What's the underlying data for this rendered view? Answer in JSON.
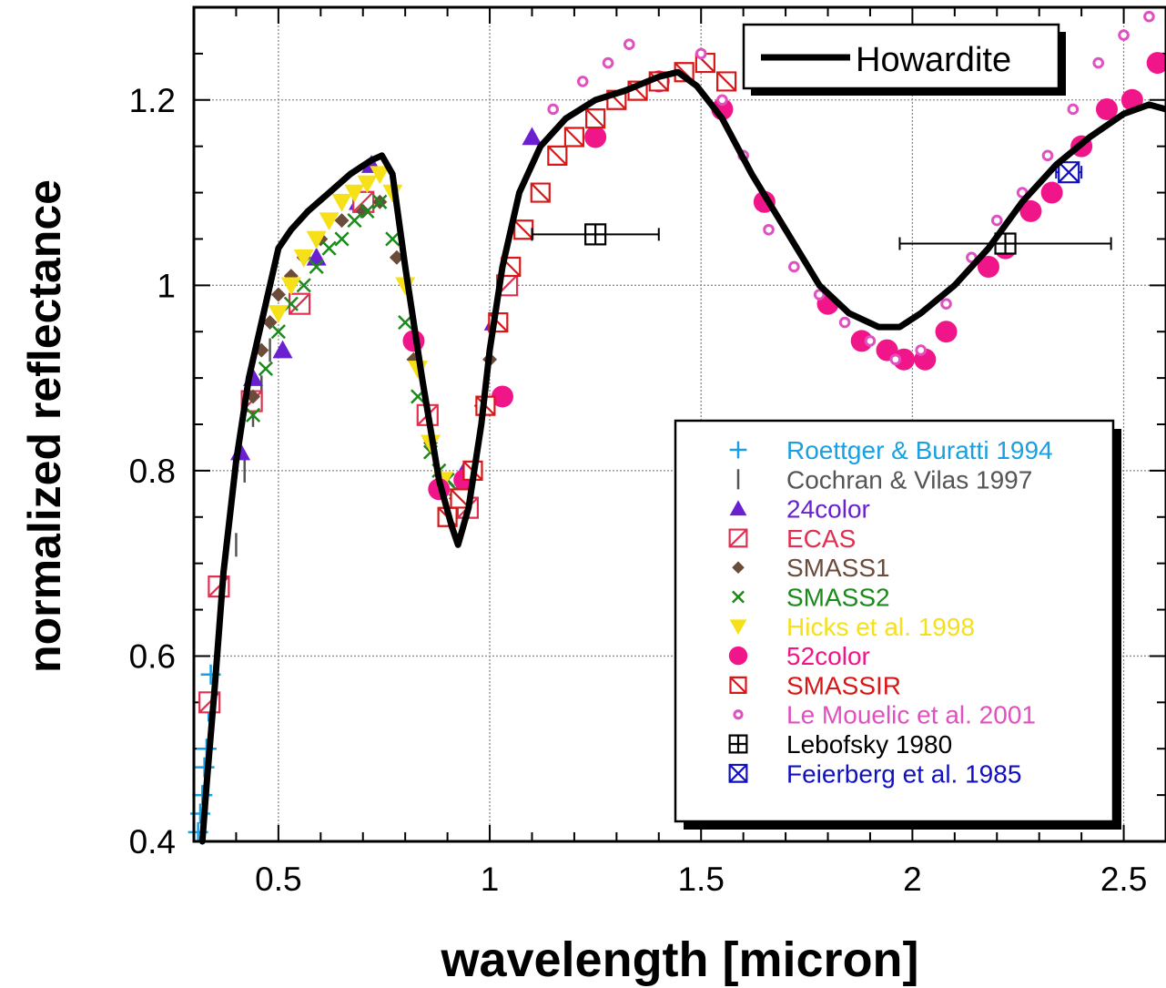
{
  "chart_data": {
    "type": "scatter",
    "title": "",
    "xlabel": "wavelength [micron]",
    "ylabel": "normalized reflectance",
    "xlim": [
      0.3,
      2.6
    ],
    "ylim": [
      0.4,
      1.3
    ],
    "x_ticks": [
      {
        "v": 0.5,
        "label": "0.5"
      },
      {
        "v": 1.0,
        "label": "1"
      },
      {
        "v": 1.5,
        "label": "1.5"
      },
      {
        "v": 2.0,
        "label": "2"
      },
      {
        "v": 2.5,
        "label": "2.5"
      }
    ],
    "y_ticks": [
      {
        "v": 0.4,
        "label": "0.4"
      },
      {
        "v": 0.6,
        "label": "0.6"
      },
      {
        "v": 0.8,
        "label": "0.8"
      },
      {
        "v": 1.0,
        "label": "1"
      },
      {
        "v": 1.2,
        "label": "1.2"
      }
    ],
    "grid": true,
    "line_legend": {
      "position": "top-right",
      "label": "Howardite",
      "color": "#000000"
    },
    "legend_position": "center-right",
    "line_series": {
      "name": "Howardite",
      "color": "#000000",
      "x": [
        0.32,
        0.33,
        0.35,
        0.37,
        0.4,
        0.43,
        0.46,
        0.5,
        0.53,
        0.57,
        0.62,
        0.67,
        0.72,
        0.745,
        0.77,
        0.8,
        0.84,
        0.88,
        0.91,
        0.925,
        0.95,
        0.98,
        1.0,
        1.03,
        1.07,
        1.12,
        1.18,
        1.25,
        1.32,
        1.4,
        1.445,
        1.49,
        1.55,
        1.62,
        1.7,
        1.78,
        1.85,
        1.92,
        1.97,
        2.02,
        2.1,
        2.18,
        2.26,
        2.34,
        2.42,
        2.5,
        2.56,
        2.6
      ],
      "y": [
        0.4,
        0.46,
        0.57,
        0.69,
        0.81,
        0.9,
        0.96,
        1.04,
        1.06,
        1.08,
        1.1,
        1.12,
        1.135,
        1.14,
        1.12,
        1.02,
        0.9,
        0.79,
        0.74,
        0.72,
        0.76,
        0.85,
        0.93,
        1.02,
        1.1,
        1.15,
        1.18,
        1.2,
        1.21,
        1.225,
        1.23,
        1.215,
        1.18,
        1.12,
        1.06,
        1.0,
        0.97,
        0.955,
        0.955,
        0.97,
        1.0,
        1.04,
        1.09,
        1.13,
        1.16,
        1.185,
        1.195,
        1.19
      ]
    },
    "series": [
      {
        "name": "Roettger & Buratti 1994",
        "marker": "plus",
        "color": "#1aa0e0",
        "x": [
          0.31,
          0.315,
          0.32,
          0.325,
          0.33,
          0.335,
          0.34
        ],
        "y": [
          0.41,
          0.43,
          0.45,
          0.48,
          0.5,
          0.54,
          0.58
        ]
      },
      {
        "name": "Cochran & Vilas 1997",
        "marker": "bar",
        "color": "#555555",
        "x": [
          0.4,
          0.42,
          0.44,
          0.46,
          0.48
        ],
        "y": [
          0.72,
          0.8,
          0.86,
          0.89,
          0.93
        ]
      },
      {
        "name": "24color",
        "marker": "triangle-up",
        "color": "#6a1fd0",
        "x": [
          0.41,
          0.44,
          0.51,
          0.59,
          0.69,
          0.72,
          0.94,
          1.01,
          1.1
        ],
        "y": [
          0.82,
          0.9,
          0.93,
          1.03,
          1.09,
          1.13,
          0.8,
          0.96,
          1.16
        ]
      },
      {
        "name": "ECAS",
        "marker": "square-slash",
        "color": "#e03050",
        "x": [
          0.337,
          0.359,
          0.437,
          0.55,
          0.701,
          0.853,
          0.948,
          1.041
        ],
        "y": [
          0.55,
          0.675,
          0.875,
          0.98,
          1.09,
          0.86,
          0.76,
          1.0
        ]
      },
      {
        "name": "SMASS1",
        "marker": "diamond",
        "color": "#6b4c3b",
        "x": [
          0.44,
          0.46,
          0.48,
          0.5,
          0.53,
          0.56,
          0.6,
          0.65,
          0.7,
          0.74,
          0.78,
          0.82,
          0.86,
          0.89,
          0.92,
          0.95,
          0.98,
          1.0
        ],
        "y": [
          0.88,
          0.93,
          0.96,
          0.99,
          1.01,
          1.03,
          1.05,
          1.07,
          1.08,
          1.09,
          1.03,
          0.92,
          0.83,
          0.78,
          0.77,
          0.8,
          0.87,
          0.92
        ]
      },
      {
        "name": "SMASS2",
        "marker": "x",
        "color": "#1a8a1a",
        "x": [
          0.44,
          0.47,
          0.5,
          0.53,
          0.56,
          0.59,
          0.62,
          0.65,
          0.68,
          0.71,
          0.74,
          0.77,
          0.8,
          0.83,
          0.86,
          0.88,
          0.9,
          0.92
        ],
        "y": [
          0.86,
          0.91,
          0.95,
          0.98,
          1.0,
          1.02,
          1.04,
          1.05,
          1.07,
          1.08,
          1.09,
          1.05,
          0.96,
          0.88,
          0.82,
          0.8,
          0.79,
          0.78
        ]
      },
      {
        "name": "Hicks et al. 1998",
        "marker": "triangle-down",
        "color": "#f5e01a",
        "x": [
          0.5,
          0.53,
          0.56,
          0.59,
          0.62,
          0.65,
          0.68,
          0.71,
          0.74,
          0.77,
          0.8,
          0.83,
          0.86,
          0.89
        ],
        "y": [
          0.97,
          1.0,
          1.03,
          1.05,
          1.07,
          1.09,
          1.1,
          1.11,
          1.12,
          1.1,
          1.0,
          0.91,
          0.83,
          0.79
        ]
      },
      {
        "name": "52color",
        "marker": "circle",
        "color": "#f0168a",
        "x": [
          0.82,
          0.88,
          0.94,
          1.03,
          1.25,
          1.4,
          1.55,
          1.65,
          1.8,
          1.88,
          1.94,
          1.98,
          2.03,
          2.08,
          2.18,
          2.22,
          2.28,
          2.33,
          2.4,
          2.46,
          2.52,
          2.58
        ],
        "y": [
          0.94,
          0.78,
          0.79,
          0.88,
          1.16,
          1.22,
          1.19,
          1.09,
          0.98,
          0.94,
          0.93,
          0.92,
          0.92,
          0.95,
          1.02,
          1.04,
          1.08,
          1.1,
          1.15,
          1.19,
          1.2,
          1.24
        ]
      },
      {
        "name": "SMASSIR",
        "marker": "square-slash-alt",
        "color": "#d81818",
        "x": [
          0.9,
          0.93,
          0.96,
          0.99,
          1.02,
          1.05,
          1.08,
          1.12,
          1.16,
          1.2,
          1.25,
          1.3,
          1.35,
          1.4,
          1.46,
          1.51,
          1.56
        ],
        "y": [
          0.75,
          0.77,
          0.8,
          0.87,
          0.96,
          1.02,
          1.06,
          1.1,
          1.14,
          1.16,
          1.18,
          1.2,
          1.21,
          1.22,
          1.23,
          1.24,
          1.22
        ]
      },
      {
        "name": "Le Mouelic et al. 2001",
        "marker": "ring",
        "color": "#e050c0",
        "x": [
          1.15,
          1.22,
          1.28,
          1.33,
          1.5,
          1.55,
          1.6,
          1.66,
          1.72,
          1.78,
          1.84,
          1.9,
          1.96,
          2.02,
          2.08,
          2.14,
          2.2,
          2.26,
          2.32,
          2.38,
          2.44,
          2.5,
          2.56
        ],
        "y": [
          1.19,
          1.22,
          1.24,
          1.26,
          1.25,
          1.2,
          1.14,
          1.06,
          1.02,
          0.99,
          0.96,
          0.94,
          0.92,
          0.93,
          0.98,
          1.03,
          1.07,
          1.1,
          1.14,
          1.19,
          1.24,
          1.27,
          1.29
        ]
      },
      {
        "name": "Lebofsky 1980",
        "marker": "square-plus",
        "color": "#000000",
        "x": [
          1.25,
          2.22
        ],
        "y": [
          1.055,
          1.045
        ],
        "xerr": [
          0.15,
          0.25
        ]
      },
      {
        "name": "Feierberg et al. 1985",
        "marker": "square-x",
        "color": "#1010c0",
        "x": [
          2.37
        ],
        "y": [
          1.122
        ],
        "xerr": [
          0.03
        ]
      }
    ]
  }
}
